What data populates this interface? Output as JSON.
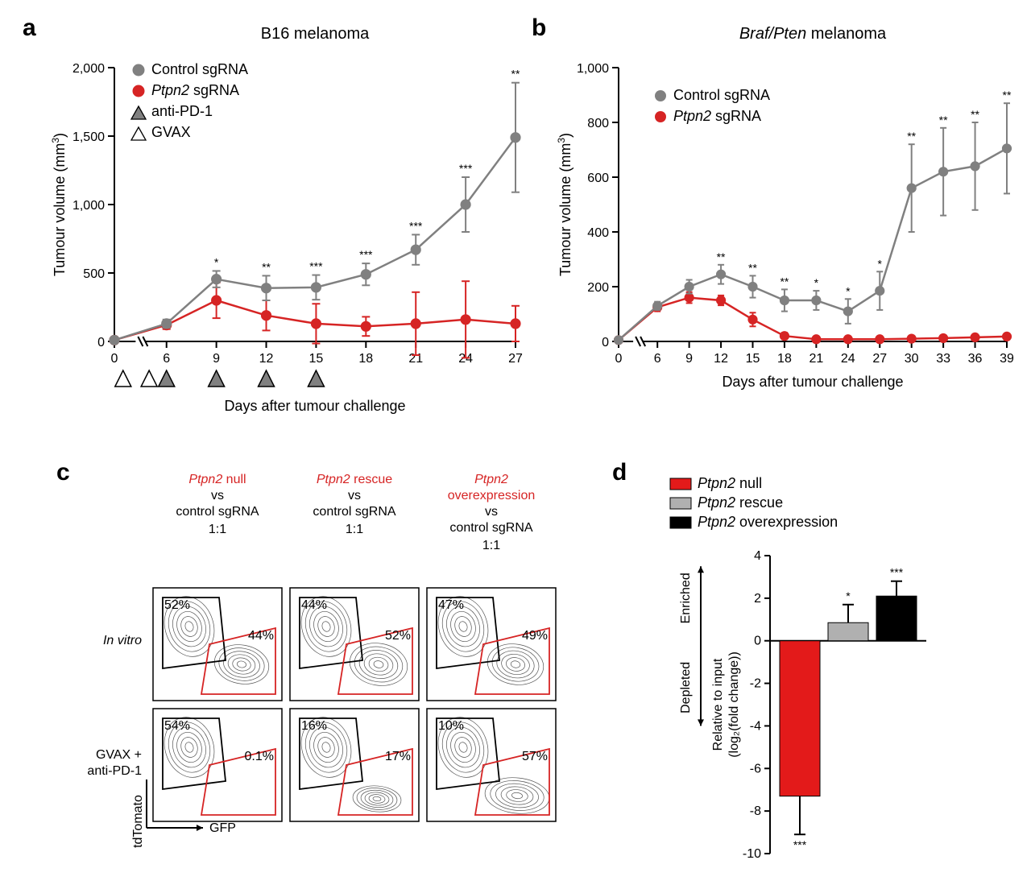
{
  "colors": {
    "control_gray": "#808080",
    "ptpn2_red": "#d62424",
    "black": "#000000",
    "white": "#ffffff",
    "red_bar": "#e31a1a",
    "gray_bar": "#b0b0b0"
  },
  "panel_a": {
    "label": "a",
    "title": "B16 melanoma",
    "ylabel": "Tumour volume (mm³)",
    "xlabel": "Days after tumour challenge",
    "ylim": [
      0,
      2000
    ],
    "ytick_step": 500,
    "xticks": [
      0,
      6,
      9,
      12,
      15,
      18,
      21,
      24,
      27
    ],
    "legend": {
      "control": "Control sgRNA",
      "ptpn2": "Ptpn2 sgRNA",
      "antipd1": "anti-PD-1",
      "gvax": "GVAX"
    },
    "markers": {
      "gvax_days": [
        1,
        4
      ],
      "dual_days": [
        6,
        9,
        12,
        15
      ]
    },
    "series_control": {
      "x": [
        0,
        6,
        9,
        12,
        15,
        18,
        21,
        24,
        27
      ],
      "y": [
        10,
        130,
        455,
        390,
        395,
        490,
        670,
        1000,
        1490
      ],
      "err": [
        0,
        30,
        60,
        90,
        90,
        80,
        110,
        200,
        400
      ],
      "sig": [
        "",
        "",
        "*",
        "**",
        "***",
        "***",
        "***",
        "***",
        "**"
      ]
    },
    "series_ptpn2": {
      "x": [
        0,
        6,
        9,
        12,
        15,
        18,
        21,
        24,
        27
      ],
      "y": [
        10,
        120,
        300,
        190,
        130,
        110,
        130,
        160,
        130
      ],
      "err": [
        0,
        30,
        130,
        110,
        145,
        70,
        230,
        280,
        130
      ]
    }
  },
  "panel_b": {
    "label": "b",
    "title": "Braf/Pten melanoma",
    "title_italic": true,
    "ylabel": "Tumour volume (mm³)",
    "xlabel": "Days after tumour challenge",
    "ylim": [
      0,
      1000
    ],
    "ytick_step": 200,
    "xticks": [
      0,
      6,
      9,
      12,
      15,
      18,
      21,
      24,
      27,
      30,
      33,
      36,
      39
    ],
    "legend": {
      "control": "Control sgRNA",
      "ptpn2": "Ptpn2 sgRNA"
    },
    "series_control": {
      "x": [
        0,
        6,
        9,
        12,
        15,
        18,
        21,
        24,
        27,
        30,
        33,
        36,
        39
      ],
      "y": [
        5,
        130,
        200,
        245,
        200,
        150,
        150,
        110,
        185,
        560,
        620,
        640,
        705
      ],
      "err": [
        0,
        15,
        25,
        35,
        40,
        40,
        35,
        45,
        70,
        160,
        160,
        160,
        165
      ],
      "sig": [
        "",
        "",
        "",
        "**",
        "**",
        "**",
        "*",
        "*",
        "*",
        "**",
        "**",
        "**",
        "**"
      ]
    },
    "series_ptpn2": {
      "x": [
        0,
        6,
        9,
        12,
        15,
        18,
        21,
        24,
        27,
        30,
        33,
        36,
        39
      ],
      "y": [
        5,
        125,
        160,
        150,
        80,
        20,
        8,
        8,
        8,
        10,
        12,
        15,
        18
      ],
      "err": [
        0,
        15,
        20,
        18,
        25,
        12,
        8,
        8,
        8,
        8,
        8,
        10,
        10
      ]
    }
  },
  "panel_c": {
    "label": "c",
    "col_titles": {
      "c1_top": "Ptpn2 null",
      "c1_vs": "vs",
      "c1_bot": "control sgRNA",
      "c2_top": "Ptpn2 rescue",
      "c2_vs": "vs",
      "c2_bot": "control sgRNA",
      "c3_top1": "Ptpn2",
      "c3_top2": "overexpression",
      "c3_vs": "vs",
      "c3_bot": "control sgRNA"
    },
    "ratio_label": "1:1",
    "row_labels": {
      "r1": "In vitro",
      "r2a": "GVAX +",
      "r2b": "anti-PD-1"
    },
    "axis": {
      "y": "tdTomato",
      "x": "GFP"
    },
    "percents": {
      "r1c1_black": "52%",
      "r1c1_red": "44%",
      "r1c2_black": "44%",
      "r1c2_red": "52%",
      "r1c3_black": "47%",
      "r1c3_red": "49%",
      "r2c1_black": "54%",
      "r2c1_red": "0.1%",
      "r2c2_black": "16%",
      "r2c2_red": "17%",
      "r2c3_black": "10%",
      "r2c3_red": "57%"
    }
  },
  "panel_d": {
    "label": "d",
    "legend": {
      "null": "Ptpn2 null",
      "rescue": "Ptpn2 rescue",
      "over": "Ptpn2 overexpression"
    },
    "ylabel_line1": "Relative to input",
    "ylabel_line2": "(log₂(fold change))",
    "side_label_top": "Enriched",
    "side_label_bot": "Depleted",
    "ylim": [
      -10,
      4
    ],
    "ytick_step": 2,
    "bars": {
      "null": {
        "value": -7.3,
        "err": 1.8,
        "color": "#e31a1a",
        "sig": "***"
      },
      "rescue": {
        "value": 0.85,
        "err": 0.85,
        "color": "#b0b0b0",
        "sig": "*"
      },
      "over": {
        "value": 2.1,
        "err": 0.7,
        "color": "#000000",
        "sig": "***"
      }
    }
  }
}
